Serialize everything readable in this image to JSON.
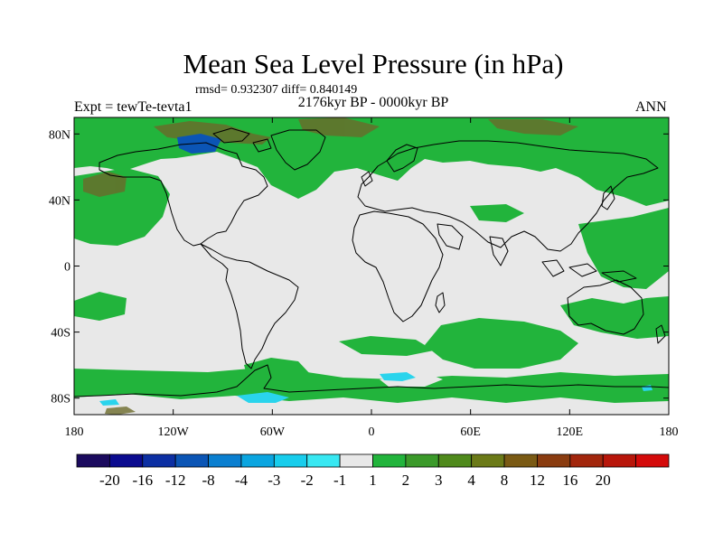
{
  "title": "Mean Sea Level Pressure (in hPa)",
  "stats": "rmsd= 0.932307 diff= 0.840149",
  "period": "2176kyr BP - 0000kyr BP",
  "experiment": "Expt = tewTe-tevta1",
  "season": "ANN",
  "axes": {
    "lat_labels": [
      "80N",
      "40N",
      "0",
      "40S",
      "80S"
    ],
    "lon_labels": [
      "180",
      "120W",
      "60W",
      "0",
      "60E",
      "120E",
      "180"
    ]
  },
  "colorbar": {
    "colors": [
      "#1b0a5e",
      "#0b0b8f",
      "#0c2fa3",
      "#0b55b5",
      "#0a7fd0",
      "#0aa5e0",
      "#18cdec",
      "#38e8f2",
      "#e8e8e8",
      "#22b43c",
      "#3b9a2a",
      "#4f8a1c",
      "#6b7a18",
      "#7a5a14",
      "#8a3c10",
      "#a2260c",
      "#b8160a",
      "#d40a0a"
    ],
    "labels": [
      "-20",
      "-16",
      "-12",
      "-8",
      "-4",
      "-3",
      "-2",
      "-1",
      "1",
      "2",
      "3",
      "4",
      "8",
      "12",
      "16",
      "20"
    ]
  },
  "colors": {
    "neutral": "#e8e8e8",
    "green": "#22b43c",
    "olive": "#6b6a2a",
    "cyan": "#2ad4ec",
    "blue": "#0b55b5"
  }
}
